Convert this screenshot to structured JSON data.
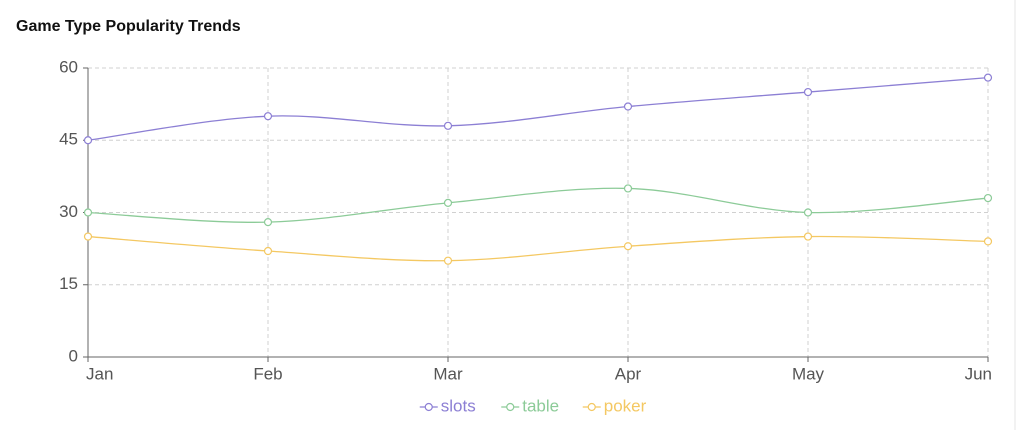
{
  "chart_data": {
    "type": "line",
    "title": "Game Type Popularity Trends",
    "categories": [
      "Jan",
      "Feb",
      "Mar",
      "Apr",
      "May",
      "Jun"
    ],
    "series": [
      {
        "name": "slots",
        "color": "#8c7fd4",
        "values": [
          45,
          50,
          48,
          52,
          55,
          58
        ]
      },
      {
        "name": "table",
        "color": "#8ccb98",
        "values": [
          30,
          28,
          32,
          35,
          30,
          33
        ]
      },
      {
        "name": "poker",
        "color": "#f4c862",
        "values": [
          25,
          22,
          20,
          23,
          25,
          24
        ]
      }
    ],
    "ylim": [
      0,
      60
    ],
    "yticks": [
      0,
      15,
      30,
      45,
      60
    ],
    "grid": true,
    "smooth": true,
    "legend": "bottom"
  }
}
